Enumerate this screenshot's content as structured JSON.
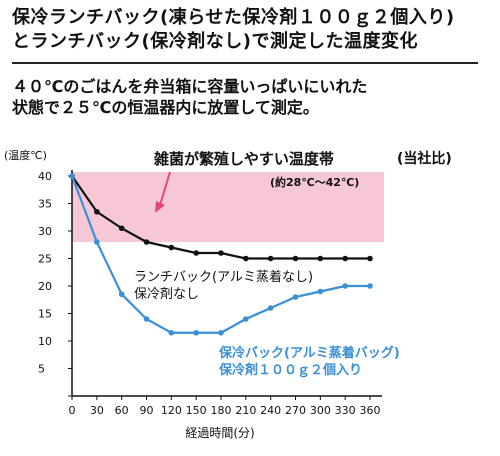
{
  "header": {
    "line1": "保冷ランチバック(凍らせた保冷剤１００ｇ２個入り)",
    "line2": "とランチバック(保冷剤なし)で測定した温度変化"
  },
  "description": {
    "line1": "４０℃のごはんを弁当箱に容量いっぱいにいれた",
    "line2": "状態で２５℃の恒温器内に放置して測定。"
  },
  "colors": {
    "band": "#f6c8d6",
    "lunch_bag": "#111111",
    "cooler_bag": "#3a8fd6",
    "arrow": "#e2477a"
  },
  "chart_data": {
    "type": "line",
    "ylabel": "(温度℃)",
    "xlabel": "経過時間(分)",
    "source_note": "(当社比)",
    "x": [
      0,
      30,
      60,
      90,
      120,
      150,
      180,
      210,
      240,
      270,
      300,
      330,
      360
    ],
    "xlim": [
      0,
      360
    ],
    "ylim": [
      0,
      40
    ],
    "y_ticks": [
      0,
      5,
      10,
      15,
      20,
      25,
      30,
      35,
      40
    ],
    "band": {
      "from": 28,
      "to": 42,
      "label": "雑菌が繁殖しやすい温度帯",
      "sublabel": "(約28℃～42℃)"
    },
    "series": [
      {
        "name": "ランチバック(アルミ蒸着なし) 保冷剤なし",
        "label_line1": "ランチバック(アルミ蒸着なし)",
        "label_line2": "保冷剤なし",
        "color": "#111111",
        "values": [
          40,
          33.5,
          30.5,
          28,
          27,
          26,
          26,
          25,
          25,
          25,
          25,
          25,
          25
        ]
      },
      {
        "name": "保冷バック(アルミ蒸着バッグ) 保冷剤１００ｇ２個入り",
        "label_line1": "保冷バック(アルミ蒸着バッグ)",
        "label_line2": "保冷剤１００ｇ２個入り",
        "color": "#3a8fd6",
        "values": [
          40,
          28,
          18.5,
          14,
          11.5,
          11.5,
          11.5,
          14,
          16,
          18,
          19,
          20,
          20
        ]
      }
    ]
  }
}
